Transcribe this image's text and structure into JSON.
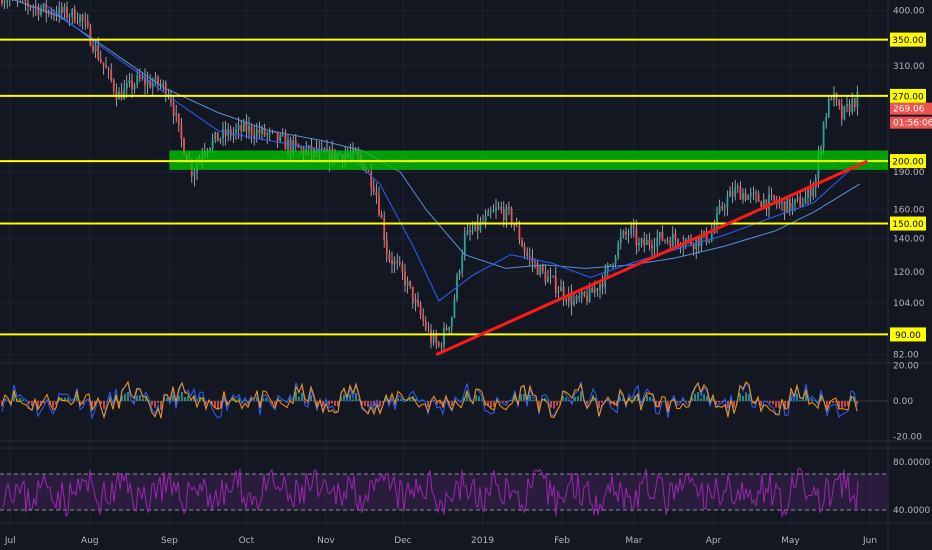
{
  "chart_data": {
    "type": "line",
    "theme": {
      "background": "#131722",
      "grid": "#1e2230",
      "axis_text": "#b2b5be",
      "candle_up": "#26a69a",
      "candle_down": "#ef5350",
      "ma_color": "#2962ff",
      "ma_long_color": "#5b8fd6",
      "level_color": "#ffff00",
      "trendline_color": "#ff1a1a",
      "zone_color": "#00cc00",
      "rsi_color": "#9c27b0",
      "rsi_band": "#3b1f4f",
      "current_price_bg": "#ef5350",
      "countdown_bg": "#ef5350"
    },
    "x_axis": {
      "labels": [
        "Jul",
        "Aug",
        "Sep",
        "Oct",
        "Nov",
        "Dec",
        "2019",
        "Feb",
        "Mar",
        "Apr",
        "May",
        "Jun"
      ]
    },
    "price_panel": {
      "scale": "log",
      "ylim": [
        80,
        420
      ],
      "ticks": [
        "400.00",
        "310.00",
        "190.00",
        "160.00",
        "140.00",
        "120.00",
        "104.00",
        "82.00"
      ],
      "price_series": [
        [
          "2018-06-27",
          430
        ],
        [
          "2018-07-15",
          400
        ],
        [
          "2018-07-28",
          390
        ],
        [
          "2018-08-05",
          320
        ],
        [
          "2018-08-12",
          270
        ],
        [
          "2018-08-20",
          290
        ],
        [
          "2018-08-28",
          285
        ],
        [
          "2018-09-01",
          275
        ],
        [
          "2018-09-05",
          225
        ],
        [
          "2018-09-10",
          190
        ],
        [
          "2018-09-15",
          215
        ],
        [
          "2018-09-22",
          225
        ],
        [
          "2018-10-01",
          232
        ],
        [
          "2018-10-10",
          225
        ],
        [
          "2018-10-20",
          212
        ],
        [
          "2018-11-01",
          205
        ],
        [
          "2018-11-10",
          207
        ],
        [
          "2018-11-15",
          200
        ],
        [
          "2018-11-20",
          178
        ],
        [
          "2018-11-25",
          130
        ],
        [
          "2018-12-01",
          118
        ],
        [
          "2018-12-07",
          100
        ],
        [
          "2018-12-12",
          88
        ],
        [
          "2018-12-15",
          85
        ],
        [
          "2018-12-20",
          98
        ],
        [
          "2018-12-25",
          140
        ],
        [
          "2019-01-01",
          150
        ],
        [
          "2019-01-07",
          160
        ],
        [
          "2019-01-12",
          155
        ],
        [
          "2019-01-18",
          130
        ],
        [
          "2019-01-25",
          118
        ],
        [
          "2019-02-01",
          110
        ],
        [
          "2019-02-06",
          104
        ],
        [
          "2019-02-12",
          108
        ],
        [
          "2019-02-18",
          118
        ],
        [
          "2019-02-24",
          140
        ],
        [
          "2019-02-28",
          145
        ],
        [
          "2019-03-03",
          135
        ],
        [
          "2019-03-10",
          140
        ],
        [
          "2019-03-17",
          140
        ],
        [
          "2019-03-24",
          138
        ],
        [
          "2019-03-31",
          142
        ],
        [
          "2019-04-05",
          165
        ],
        [
          "2019-04-10",
          175
        ],
        [
          "2019-04-17",
          168
        ],
        [
          "2019-04-25",
          165
        ],
        [
          "2019-05-01",
          162
        ],
        [
          "2019-05-07",
          168
        ],
        [
          "2019-05-11",
          185
        ],
        [
          "2019-05-14",
          240
        ],
        [
          "2019-05-17",
          272
        ],
        [
          "2019-05-21",
          245
        ],
        [
          "2019-05-25",
          262
        ],
        [
          "2019-05-28",
          269
        ]
      ],
      "moving_average": [
        [
          "2018-07-15",
          410
        ],
        [
          "2018-08-05",
          340
        ],
        [
          "2018-08-20",
          300
        ],
        [
          "2018-09-05",
          260
        ],
        [
          "2018-09-20",
          230
        ],
        [
          "2018-10-05",
          222
        ],
        [
          "2018-10-25",
          213
        ],
        [
          "2018-11-10",
          205
        ],
        [
          "2018-11-22",
          180
        ],
        [
          "2018-12-05",
          135
        ],
        [
          "2018-12-15",
          105
        ],
        [
          "2018-12-28",
          118
        ],
        [
          "2019-01-12",
          130
        ],
        [
          "2019-01-28",
          125
        ],
        [
          "2019-02-12",
          117
        ],
        [
          "2019-02-28",
          125
        ],
        [
          "2019-03-17",
          133
        ],
        [
          "2019-04-05",
          142
        ],
        [
          "2019-04-25",
          155
        ],
        [
          "2019-05-10",
          165
        ],
        [
          "2019-05-28",
          200
        ]
      ],
      "moving_average_long": [
        [
          "2018-06-27",
          430
        ],
        [
          "2018-07-20",
          390
        ],
        [
          "2018-08-10",
          330
        ],
        [
          "2018-08-30",
          280
        ],
        [
          "2018-09-20",
          250
        ],
        [
          "2018-10-10",
          230
        ],
        [
          "2018-10-30",
          220
        ],
        [
          "2018-11-15",
          210
        ],
        [
          "2018-11-30",
          190
        ],
        [
          "2018-12-10",
          160
        ],
        [
          "2018-12-25",
          130
        ],
        [
          "2019-01-10",
          122
        ],
        [
          "2019-01-25",
          124
        ],
        [
          "2019-02-10",
          122
        ],
        [
          "2019-02-28",
          124
        ],
        [
          "2019-03-17",
          128
        ],
        [
          "2019-04-05",
          135
        ],
        [
          "2019-04-25",
          145
        ],
        [
          "2019-05-10",
          158
        ],
        [
          "2019-05-28",
          180
        ]
      ],
      "horizontal_levels": [
        {
          "value": 350,
          "label": "350.00"
        },
        {
          "value": 270,
          "label": "270.00"
        },
        {
          "value": 200,
          "label": "200.00"
        },
        {
          "value": 150,
          "label": "150.00"
        },
        {
          "value": 90,
          "label": "90.00"
        }
      ],
      "support_zone": {
        "from": 192,
        "to": 210,
        "start": "2018-09-01",
        "end": "2019-05-31"
      },
      "trendline": {
        "start": [
          "2018-12-14",
          82
        ],
        "end": [
          "2019-05-31",
          200
        ]
      },
      "current_price_label": "269.06",
      "countdown_label": "01:56:06"
    },
    "oscillator_panel": {
      "ticks": [
        "20.00",
        "0.00",
        "-20.00"
      ],
      "ylim": [
        -22,
        22
      ]
    },
    "rsi_panel": {
      "ticks": [
        "80.0000",
        "40.0000"
      ],
      "ylim": [
        30,
        90
      ],
      "band": [
        40,
        70
      ]
    }
  }
}
